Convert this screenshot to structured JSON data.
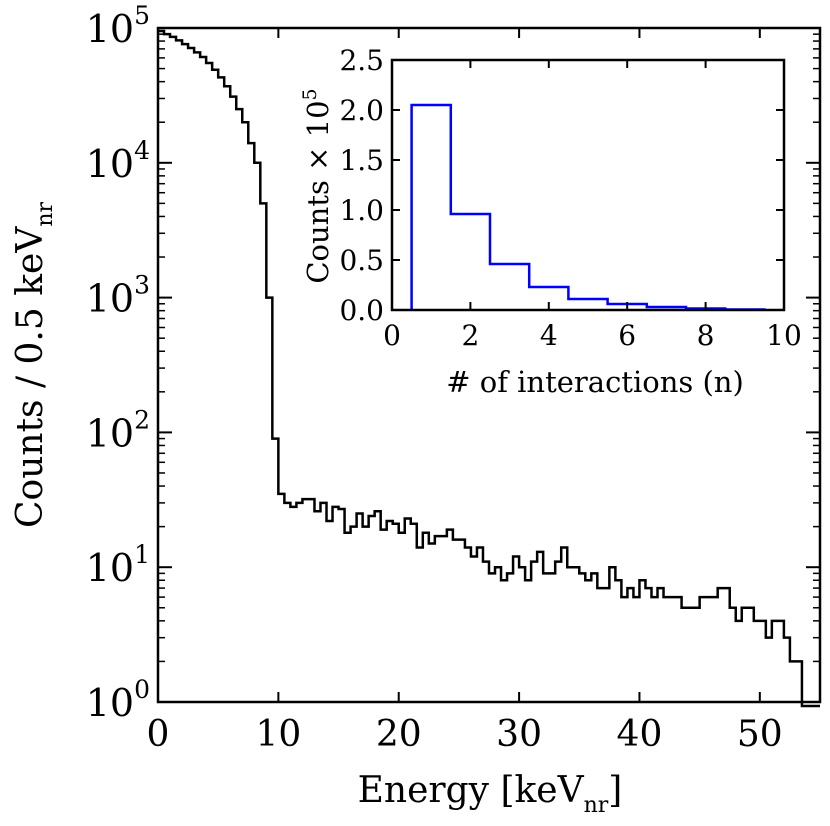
{
  "chart_data": [
    {
      "type": "step",
      "name": "main-histogram",
      "xlabel_main": "Energy [keV",
      "xlabel_sub": "nr",
      "xlabel_close": "]",
      "ylabel_main": "Counts / 0.5 keV",
      "ylabel_sub": "nr",
      "xlim": [
        0,
        55
      ],
      "ylim_log10": [
        0,
        5
      ],
      "xticks": [
        0,
        10,
        20,
        30,
        40,
        50
      ],
      "yticks": [
        {
          "base": "10",
          "exp": "0",
          "log": 0
        },
        {
          "base": "10",
          "exp": "1",
          "log": 1
        },
        {
          "base": "10",
          "exp": "2",
          "log": 2
        },
        {
          "base": "10",
          "exp": "3",
          "log": 3
        },
        {
          "base": "10",
          "exp": "4",
          "log": 4
        },
        {
          "base": "10",
          "exp": "5",
          "log": 5
        }
      ],
      "line_color": "#000000",
      "bin_width": 0.5,
      "bin_start": 0,
      "counts": [
        95000,
        90000,
        86000,
        81000,
        76000,
        71000,
        66000,
        61000,
        55000,
        49000,
        43000,
        37000,
        31000,
        25000,
        20000,
        14000,
        10000,
        5000,
        1000,
        90,
        35,
        30,
        28,
        30,
        32,
        32,
        26,
        30,
        22,
        28,
        27,
        18,
        20,
        25,
        20,
        24,
        26,
        19,
        22,
        21,
        18,
        23,
        21,
        14,
        18,
        15,
        17,
        17,
        19,
        16,
        16,
        14,
        12,
        14,
        11,
        9,
        10,
        8,
        9,
        12,
        10,
        8,
        11,
        13,
        9,
        9,
        11,
        14,
        10,
        10,
        9,
        8,
        9,
        7,
        7,
        10,
        8,
        6,
        7,
        6,
        8,
        7,
        6,
        7,
        6,
        6,
        6,
        5,
        5,
        5,
        6,
        6,
        6,
        7,
        7,
        5,
        4,
        5,
        5,
        4,
        4,
        3,
        4,
        4,
        3,
        2,
        2,
        0,
        0,
        0
      ]
    },
    {
      "type": "step",
      "name": "inset-histogram",
      "xlabel": "# of interactions (n)",
      "ylabel_main": "Counts",
      "ylabel_times": "×",
      "ylabel_base": "10",
      "ylabel_exp": "5",
      "xlim": [
        0,
        10
      ],
      "ylim": [
        0,
        2.5
      ],
      "xticks": [
        0,
        2,
        4,
        6,
        8,
        10
      ],
      "yticks": [
        "0.0",
        "0.5",
        "1.0",
        "1.5",
        "2.0",
        "2.5"
      ],
      "line_color": "#0000ff",
      "x": [
        1,
        2,
        3,
        4,
        5,
        6,
        7,
        8,
        9
      ],
      "values": [
        2.05,
        0.96,
        0.46,
        0.23,
        0.11,
        0.06,
        0.03,
        0.015,
        0.005
      ]
    }
  ]
}
